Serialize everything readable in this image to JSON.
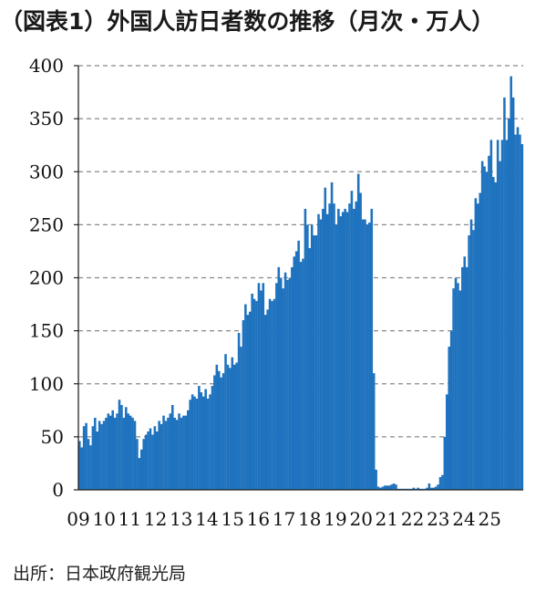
{
  "title": "（図表1）外国人訪日者数の推移（月次・万人）",
  "source": "出所：日本政府観光局",
  "colors": {
    "bar": "#1f73be",
    "grid": "#888888",
    "axis": "#222222"
  },
  "chart_data": {
    "type": "bar",
    "title": "（図表1）外国人訪日者数の推移（月次・万人）",
    "xlabel": "",
    "ylabel": "",
    "ylim": [
      0,
      400
    ],
    "yticks": [
      "0",
      "50",
      "100",
      "150",
      "200",
      "250",
      "300",
      "350",
      "400"
    ],
    "grid": "horizontal dashed",
    "x_tick_labels": [
      "09",
      "10",
      "11",
      "12",
      "13",
      "14",
      "15",
      "16",
      "17",
      "18",
      "19",
      "20",
      "21",
      "22",
      "23",
      "24",
      "25"
    ],
    "series": [
      {
        "values": [
          46,
          40,
          60,
          63,
          48,
          42,
          60,
          68,
          55,
          65,
          62,
          65,
          68,
          72,
          70,
          75,
          68,
          72,
          85,
          80,
          68,
          78,
          72,
          70,
          68,
          65,
          48,
          30,
          38,
          48,
          52,
          55,
          58,
          52,
          60,
          55,
          65,
          62,
          70,
          65,
          68,
          72,
          80,
          68,
          66,
          72,
          68,
          70,
          70,
          75,
          85,
          90,
          88,
          86,
          98,
          92,
          88,
          95,
          86,
          90,
          98,
          108,
          118,
          112,
          106,
          110,
          128,
          118,
          115,
          125,
          118,
          120,
          148,
          135,
          160,
          175,
          165,
          168,
          185,
          180,
          178,
          195,
          188,
          195,
          165,
          170,
          180,
          178,
          180,
          195,
          210,
          200,
          190,
          205,
          198,
          200,
          210,
          220,
          225,
          235,
          215,
          218,
          265,
          250,
          228,
          250,
          240,
          240,
          260,
          255,
          265,
          285,
          260,
          270,
          290,
          270,
          250,
          265,
          258,
          262,
          265,
          262,
          270,
          282,
          265,
          272,
          298,
          280,
          255,
          255,
          250,
          252,
          265,
          110,
          19,
          3,
          2,
          3,
          4,
          4,
          4,
          5,
          6,
          5,
          1,
          1,
          1,
          1,
          1,
          1,
          1,
          2,
          1,
          2,
          1,
          1,
          1,
          2,
          6,
          2,
          2,
          3,
          5,
          12,
          14,
          50,
          90,
          135,
          150,
          190,
          200,
          195,
          188,
          210,
          220,
          210,
          240,
          255,
          245,
          275,
          270,
          280,
          310,
          305,
          300,
          315,
          330,
          295,
          290,
          330,
          310,
          330,
          370,
          330,
          350,
          390,
          370,
          335,
          342,
          335,
          326
        ]
      }
    ]
  }
}
